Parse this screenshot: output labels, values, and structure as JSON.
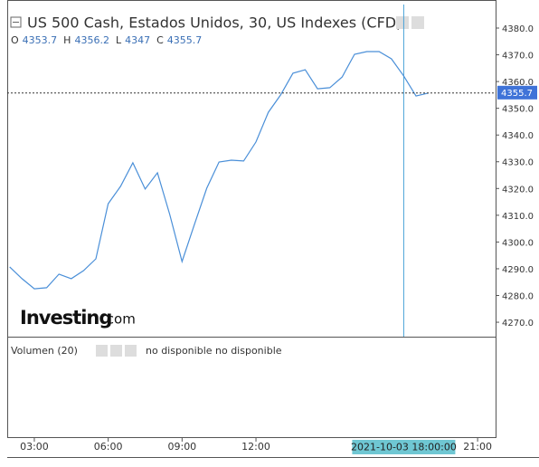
{
  "chart_data": {
    "type": "line",
    "title": "US 500 Cash, Estados Unidos, 30, US Indexes (CFD)",
    "ohlc": [
      {
        "label": "O",
        "value": 4353.7
      },
      {
        "label": "H",
        "value": 4356.2
      },
      {
        "label": "L",
        "value": 4347.0
      },
      {
        "label": "C",
        "value": 4355.7
      }
    ],
    "x": [
      2,
      2.5,
      3,
      3.5,
      4,
      4.5,
      5,
      5.5,
      6,
      6.5,
      7,
      7.5,
      8,
      8.5,
      9,
      9.5,
      10,
      10.5,
      11,
      11.5,
      12,
      12.5,
      13,
      13.5,
      14,
      14.5,
      15,
      15.5,
      16,
      16.5,
      17,
      17.5,
      18,
      18.5,
      19
    ],
    "values": [
      4290.7,
      4286.3,
      4282.5,
      4282.9,
      4288.0,
      4286.3,
      4289.3,
      4293.7,
      4314.3,
      4320.8,
      4329.6,
      4319.8,
      4325.9,
      4310.3,
      4292.7,
      4306.6,
      4320.1,
      4329.9,
      4330.6,
      4330.3,
      4337.4,
      4348.5,
      4355.0,
      4363.1,
      4364.4,
      4357.3,
      4357.7,
      4361.7,
      4370.2,
      4371.2,
      4371.2,
      4368.5,
      4362.1,
      4354.6,
      4355.7
    ],
    "color": "#4a8fd8",
    "xlim": [
      1.9,
      21.73
    ],
    "xticks": [
      {
        "value": 3,
        "label": "03:00"
      },
      {
        "value": 6,
        "label": "06:00"
      },
      {
        "value": 9,
        "label": "09:00"
      },
      {
        "value": 12,
        "label": "12:00"
      },
      {
        "value": 21,
        "label": "21:00"
      }
    ],
    "ylim": [
      4264.6,
      4388.8
    ],
    "yticks": [
      {
        "value": 4270,
        "label": "4270.0"
      },
      {
        "value": 4280,
        "label": "4280.0"
      },
      {
        "value": 4290,
        "label": "4290.0"
      },
      {
        "value": 4300,
        "label": "4300.0"
      },
      {
        "value": 4310,
        "label": "4310.0"
      },
      {
        "value": 4320,
        "label": "4320.0"
      },
      {
        "value": 4330,
        "label": "4330.0"
      },
      {
        "value": 4340,
        "label": "4340.0"
      },
      {
        "value": 4350,
        "label": "4350.0"
      },
      {
        "value": 4360,
        "label": "4360.0"
      },
      {
        "value": 4370,
        "label": "4370.0"
      },
      {
        "value": 4380,
        "label": "4380.0"
      }
    ],
    "last_price": 4355.7,
    "crosshair": {
      "value": 18,
      "label": "2021-10-03 18:00:00"
    },
    "volume_label": "Volumen (20)",
    "volume_status": [
      "no disponible",
      "no disponible"
    ],
    "logo": "Investing",
    "logo_suffix": ".com"
  }
}
